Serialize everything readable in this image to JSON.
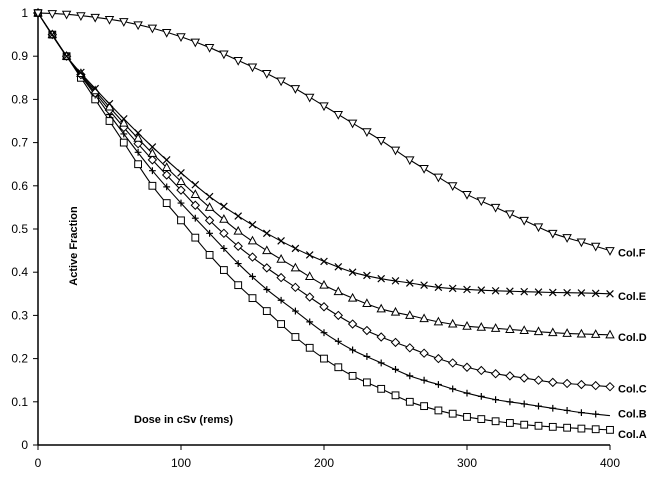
{
  "chart_data": {
    "type": "line",
    "title": "",
    "xlabel": "Dose in cSv (rems)",
    "ylabel": "Active Fraction",
    "xlim": [
      0,
      400
    ],
    "ylim": [
      0,
      1
    ],
    "x_ticks": [
      "0",
      "100",
      "200",
      "300",
      "400"
    ],
    "y_ticks": [
      "0",
      "0.1",
      "0.2",
      "0.3",
      "0.4",
      "0.5",
      "0.6",
      "0.7",
      "0.8",
      "0.9",
      "1"
    ],
    "grid": false,
    "x": [
      0,
      20,
      40,
      60,
      80,
      100,
      120,
      140,
      160,
      180,
      200,
      220,
      240,
      260,
      280,
      300,
      320,
      340,
      360,
      380,
      400
    ],
    "series": [
      {
        "name": "Col.A",
        "marker": "square",
        "values": [
          1.0,
          0.9,
          0.8,
          0.7,
          0.6,
          0.52,
          0.44,
          0.37,
          0.31,
          0.25,
          0.2,
          0.16,
          0.13,
          0.1,
          0.08,
          0.065,
          0.055,
          0.047,
          0.042,
          0.038,
          0.035
        ]
      },
      {
        "name": "Col.B",
        "marker": "plus",
        "values": [
          1.0,
          0.9,
          0.81,
          0.72,
          0.635,
          0.56,
          0.49,
          0.42,
          0.36,
          0.31,
          0.26,
          0.22,
          0.19,
          0.16,
          0.14,
          0.12,
          0.105,
          0.095,
          0.085,
          0.075,
          0.068
        ]
      },
      {
        "name": "Col.C",
        "marker": "diamond",
        "values": [
          1.0,
          0.9,
          0.815,
          0.735,
          0.66,
          0.59,
          0.52,
          0.46,
          0.41,
          0.365,
          0.32,
          0.28,
          0.25,
          0.225,
          0.2,
          0.18,
          0.165,
          0.155,
          0.145,
          0.14,
          0.135
        ]
      },
      {
        "name": "Col.D",
        "marker": "triangle-up",
        "values": [
          1.0,
          0.9,
          0.82,
          0.745,
          0.675,
          0.61,
          0.55,
          0.495,
          0.45,
          0.41,
          0.37,
          0.34,
          0.315,
          0.3,
          0.285,
          0.275,
          0.27,
          0.265,
          0.26,
          0.257,
          0.255
        ]
      },
      {
        "name": "Col.E",
        "marker": "x",
        "values": [
          1.0,
          0.9,
          0.825,
          0.755,
          0.69,
          0.63,
          0.575,
          0.53,
          0.49,
          0.455,
          0.425,
          0.4,
          0.385,
          0.375,
          0.365,
          0.36,
          0.357,
          0.355,
          0.353,
          0.352,
          0.35
        ]
      },
      {
        "name": "Col.F",
        "marker": "triangle-down",
        "values": [
          1.0,
          0.997,
          0.99,
          0.98,
          0.965,
          0.945,
          0.92,
          0.89,
          0.86,
          0.825,
          0.785,
          0.745,
          0.705,
          0.66,
          0.62,
          0.58,
          0.55,
          0.52,
          0.49,
          0.47,
          0.45
        ]
      }
    ]
  }
}
